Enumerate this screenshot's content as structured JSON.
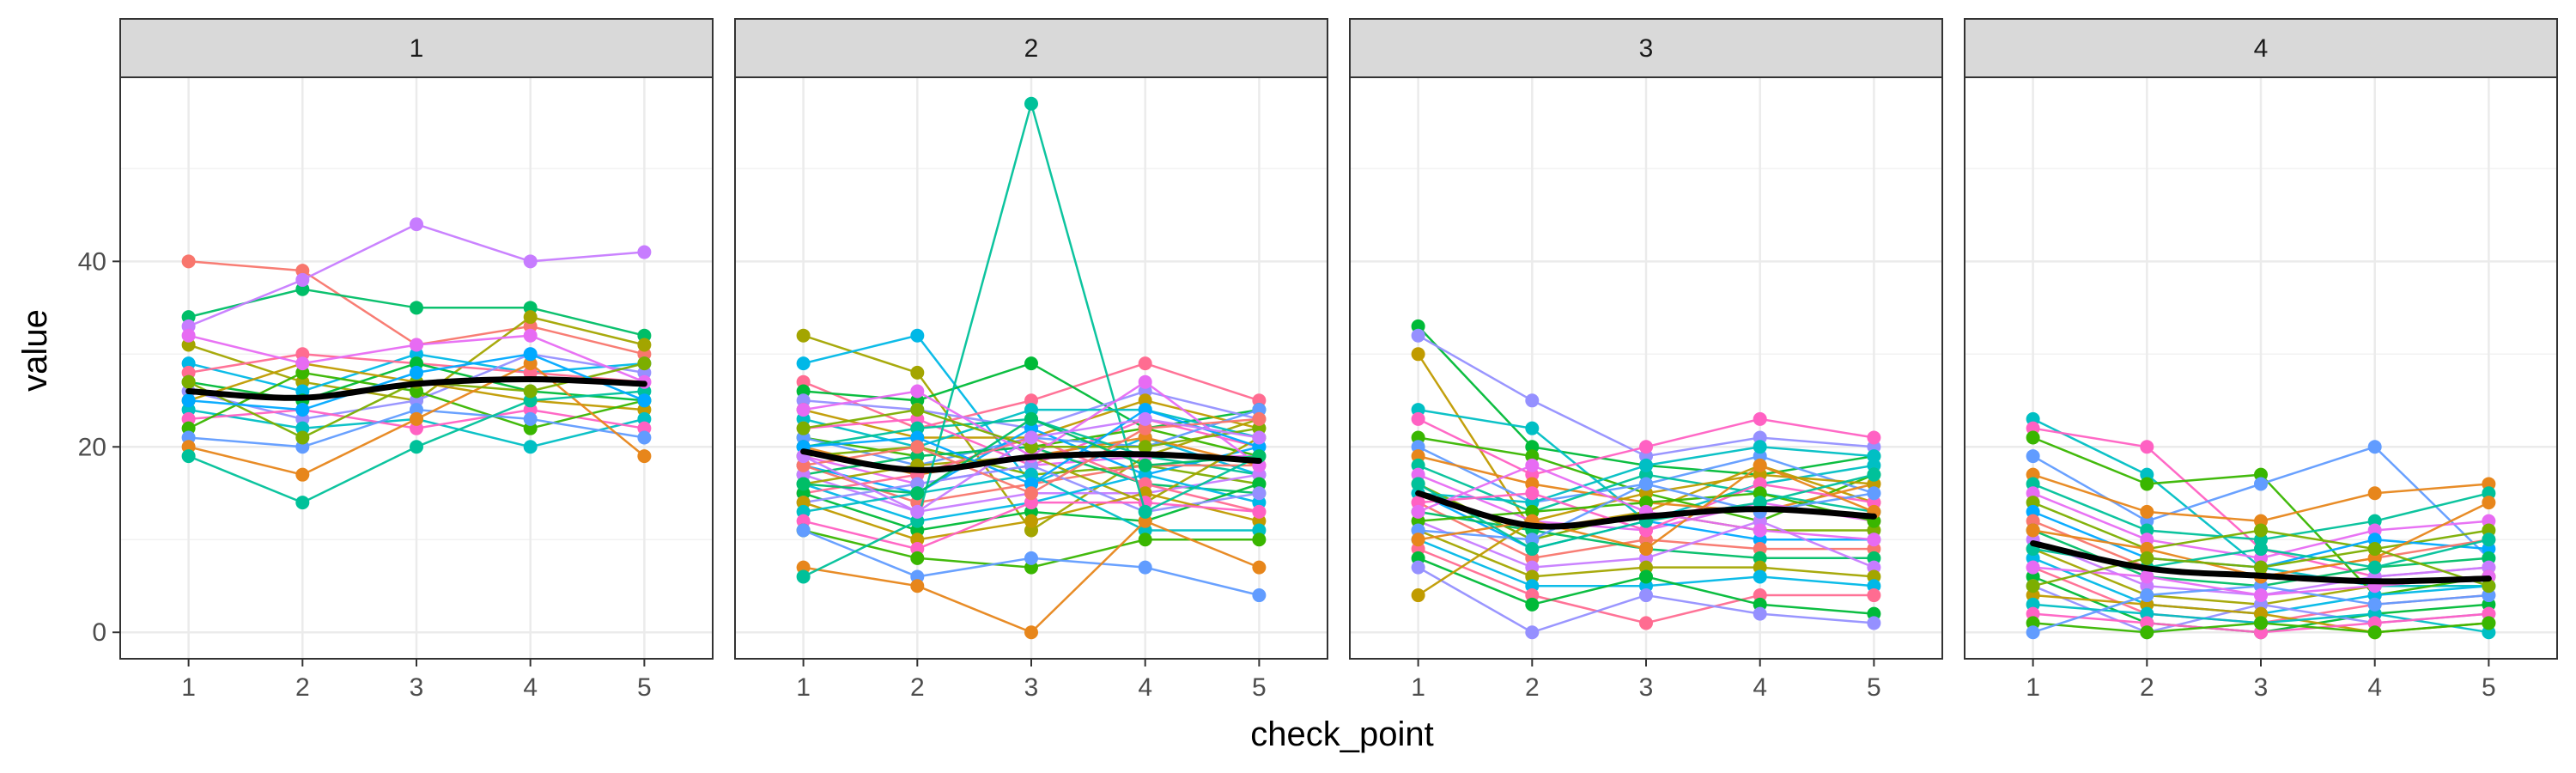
{
  "chart_data": {
    "type": "line",
    "layout": "facets-1x4",
    "xlabel": "check_point",
    "ylabel": "value",
    "x": [
      1,
      2,
      3,
      4,
      5
    ],
    "x_tick_labels": [
      "1",
      "2",
      "3",
      "4",
      "5"
    ],
    "y_ticks": [
      0,
      20,
      40
    ],
    "y_tick_labels": [
      "0",
      "20",
      "40"
    ],
    "ylim": [
      -2.85,
      59.85
    ],
    "grid": true,
    "legend": "none",
    "smooth_color": "#000000",
    "palette": [
      "#F8766D",
      "#E7861B",
      "#C09B00",
      "#A3A500",
      "#7CAE00",
      "#39B600",
      "#00BA38",
      "#00BE67",
      "#00C19A",
      "#00BFC4",
      "#00B8E7",
      "#00A9FF",
      "#619CFF",
      "#9590FF",
      "#C77CFF",
      "#E76BF3",
      "#FF61C3",
      "#FF6C91"
    ],
    "facets": [
      {
        "label": "1",
        "smooth": [
          26,
          25.3,
          26.8,
          27.3,
          26.8
        ],
        "lines": [
          [
            40,
            39,
            31,
            33,
            30
          ],
          [
            34,
            37,
            35,
            35,
            32
          ],
          [
            33,
            38,
            44,
            40,
            41
          ],
          [
            31,
            27,
            25,
            34,
            31
          ],
          [
            29,
            26,
            30,
            28,
            29
          ],
          [
            28,
            30,
            29,
            28,
            27
          ],
          [
            27,
            25,
            29,
            26,
            25
          ],
          [
            26,
            23,
            25,
            30,
            28
          ],
          [
            25,
            29,
            27,
            25,
            24
          ],
          [
            24,
            22,
            23,
            20,
            23
          ],
          [
            23,
            24,
            22,
            24,
            22
          ],
          [
            22,
            28,
            26,
            22,
            25
          ],
          [
            21,
            20,
            24,
            23,
            21
          ],
          [
            20,
            17,
            23,
            29,
            19
          ],
          [
            19,
            14,
            20,
            25,
            26
          ],
          [
            32,
            29,
            31,
            32,
            27
          ],
          [
            27,
            21,
            27,
            26,
            29
          ],
          [
            25,
            24,
            28,
            30,
            25
          ]
        ]
      },
      {
        "label": "2",
        "smooth": [
          19.5,
          17.5,
          18.9,
          19.2,
          18.5
        ],
        "lines": [
          [
            32,
            28,
            11,
            19,
            23
          ],
          [
            29,
            32,
            16,
            21,
            17
          ],
          [
            27,
            22,
            25,
            29,
            25
          ],
          [
            26,
            25,
            29,
            22,
            24
          ],
          [
            25,
            24,
            22,
            26,
            23
          ],
          [
            24,
            21,
            21,
            25,
            22
          ],
          [
            23,
            20,
            24,
            24,
            21
          ],
          [
            22,
            23,
            18,
            23,
            20
          ],
          [
            21,
            19,
            20,
            22,
            19
          ],
          [
            21,
            18,
            21,
            20,
            24
          ],
          [
            20,
            17,
            19,
            21,
            18
          ],
          [
            20,
            22,
            23,
            19,
            17
          ],
          [
            19,
            16,
            18,
            19,
            19
          ],
          [
            19,
            20,
            17,
            18,
            16
          ],
          [
            18,
            15,
            22,
            17,
            20
          ],
          [
            18,
            14,
            16,
            18,
            18
          ],
          [
            17,
            19,
            20,
            16,
            15
          ],
          [
            17,
            13,
            15,
            15,
            17
          ],
          [
            16,
            18,
            19,
            14,
            21
          ],
          [
            16,
            12,
            14,
            17,
            14
          ],
          [
            15,
            17,
            21,
            16,
            13
          ],
          [
            15,
            11,
            13,
            12,
            16
          ],
          [
            14,
            16,
            18,
            13,
            15
          ],
          [
            14,
            10,
            12,
            15,
            12
          ],
          [
            13,
            15,
            17,
            11,
            11
          ],
          [
            12,
            9,
            14,
            14,
            13
          ],
          [
            11,
            8,
            7,
            10,
            10
          ],
          [
            11,
            6,
            8,
            7,
            4
          ],
          [
            7,
            5,
            0,
            12,
            7
          ],
          [
            6,
            12,
            57,
            13,
            19
          ],
          [
            24,
            26,
            19,
            27,
            18
          ],
          [
            22,
            24,
            20,
            20,
            22
          ],
          [
            20,
            21,
            16,
            24,
            20
          ],
          [
            18,
            20,
            15,
            22,
            23
          ],
          [
            16,
            15,
            23,
            18,
            19
          ],
          [
            19,
            13,
            21,
            23,
            21
          ]
        ]
      },
      {
        "label": "3",
        "smooth": [
          15,
          11.5,
          12.5,
          13.3,
          12.5
        ],
        "lines": [
          [
            33,
            20,
            18,
            17,
            19
          ],
          [
            32,
            25,
            19,
            21,
            20
          ],
          [
            30,
            11,
            13,
            18,
            14
          ],
          [
            24,
            22,
            12,
            16,
            18
          ],
          [
            23,
            17,
            20,
            23,
            21
          ],
          [
            21,
            19,
            15,
            12,
            17
          ],
          [
            20,
            14,
            16,
            19,
            15
          ],
          [
            19,
            16,
            14,
            13,
            16
          ],
          [
            18,
            13,
            17,
            15,
            13
          ],
          [
            17,
            12,
            11,
            14,
            12
          ],
          [
            16,
            10,
            13,
            11,
            11
          ],
          [
            15,
            9,
            12,
            10,
            10
          ],
          [
            14,
            8,
            10,
            9,
            9
          ],
          [
            13,
            11,
            9,
            8,
            8
          ],
          [
            12,
            7,
            8,
            12,
            7
          ],
          [
            11,
            6,
            7,
            7,
            6
          ],
          [
            10,
            5,
            5,
            6,
            5
          ],
          [
            9,
            4,
            1,
            4,
            4
          ],
          [
            8,
            3,
            6,
            3,
            2
          ],
          [
            7,
            0,
            4,
            2,
            1
          ],
          [
            4,
            12,
            15,
            17,
            16
          ],
          [
            15,
            14,
            18,
            20,
            19
          ],
          [
            14,
            15,
            11,
            16,
            14
          ],
          [
            12,
            13,
            14,
            15,
            12
          ],
          [
            11,
            10,
            16,
            13,
            15
          ],
          [
            10,
            12,
            9,
            18,
            13
          ],
          [
            16,
            9,
            12,
            14,
            17
          ],
          [
            13,
            18,
            13,
            11,
            10
          ]
        ]
      },
      {
        "label": "4",
        "smooth": [
          9.6,
          6.9,
          6.1,
          5.5,
          5.8
        ],
        "lines": [
          [
            23,
            17,
            7,
            5,
            5
          ],
          [
            22,
            20,
            9,
            6,
            7
          ],
          [
            21,
            16,
            17,
            4,
            6
          ],
          [
            19,
            12,
            16,
            20,
            8
          ],
          [
            17,
            13,
            12,
            15,
            16
          ],
          [
            16,
            11,
            10,
            12,
            15
          ],
          [
            15,
            10,
            8,
            11,
            12
          ],
          [
            14,
            9,
            11,
            9,
            11
          ],
          [
            13,
            8,
            7,
            10,
            9
          ],
          [
            12,
            7,
            6,
            8,
            10
          ],
          [
            11,
            6,
            5,
            7,
            8
          ],
          [
            10,
            5,
            4,
            6,
            7
          ],
          [
            9,
            4,
            3,
            5,
            6
          ],
          [
            8,
            3,
            2,
            4,
            5
          ],
          [
            7,
            2,
            1,
            3,
            4
          ],
          [
            6,
            1,
            0,
            2,
            3
          ],
          [
            5,
            0,
            3,
            1,
            2
          ],
          [
            4,
            3,
            2,
            0,
            1
          ],
          [
            3,
            2,
            1,
            2,
            0
          ],
          [
            2,
            1,
            0,
            1,
            2
          ],
          [
            1,
            0,
            1,
            0,
            1
          ],
          [
            0,
            4,
            5,
            3,
            4
          ],
          [
            11,
            9,
            6,
            8,
            14
          ],
          [
            9,
            7,
            9,
            7,
            10
          ],
          [
            7,
            6,
            4,
            5,
            6
          ],
          [
            5,
            8,
            7,
            9,
            5
          ]
        ]
      }
    ]
  }
}
